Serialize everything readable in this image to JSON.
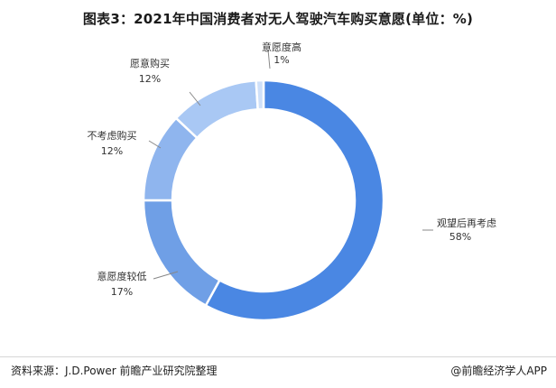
{
  "title": "图表3：2021年中国消费者对无人驾驶汽车购买意愿(单位：%)",
  "footer": {
    "source": "资料来源：J.D.Power 前瞻产业研究院整理",
    "brand": "@前瞻经济学人APP"
  },
  "colors": {
    "observe": "#4a87e3",
    "low": "#6f9fe6",
    "consider": "#8fb5ee",
    "willing": "#a9c8f4",
    "high": "#cfe0f9"
  },
  "chart_data": {
    "type": "pie",
    "donut": true,
    "title": "图表3：2021年中国消费者对无人驾驶汽车购买意愿(单位：%)",
    "unit": "%",
    "slices": [
      {
        "name": "观望后再考虑",
        "value": 58,
        "label": "58%",
        "color_key": "observe"
      },
      {
        "name": "意愿度较低",
        "value": 17,
        "label": "17%",
        "color_key": "low"
      },
      {
        "name": "不考虑购买",
        "value": 12,
        "label": "12%",
        "color_key": "consider"
      },
      {
        "name": "愿意购买",
        "value": 12,
        "label": "12%",
        "color_key": "willing"
      },
      {
        "name": "意愿度高",
        "value": 1,
        "label": "1%",
        "color_key": "high"
      }
    ]
  }
}
